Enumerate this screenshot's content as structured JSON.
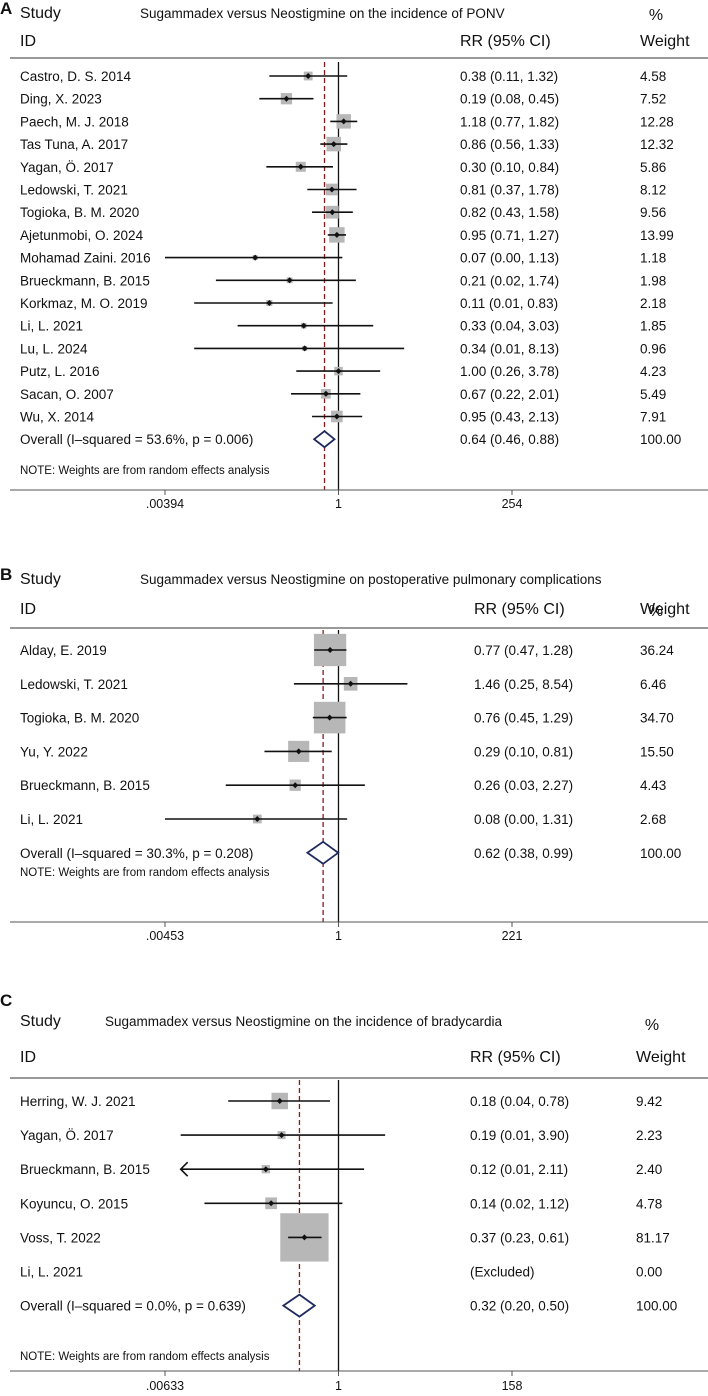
{
  "colors": {
    "box": "#b7b7b7",
    "line": "#111111",
    "diamond": "#1f2a5e",
    "dashed": "#8b1a1a"
  },
  "chart_data": [
    {
      "type": "forest",
      "panel": "A",
      "title": "Sugammadex versus Neostigmine on the incidence of PONV",
      "header": {
        "study": "Study",
        "id": "ID",
        "rr": "RR (95% CI)",
        "weight_top": "%",
        "weight": "Weight"
      },
      "xscale": "log",
      "xlim": [
        0.00394,
        254
      ],
      "xticks": [
        ".00394",
        "1",
        "254"
      ],
      "null_line": 1,
      "studies": [
        {
          "study": "Castro, D. S. 2014",
          "rr": 0.38,
          "lo": 0.11,
          "hi": 1.32,
          "ci": "0.38 (0.11, 1.32)",
          "weight": "4.58"
        },
        {
          "study": "Ding, X. 2023",
          "rr": 0.19,
          "lo": 0.08,
          "hi": 0.45,
          "ci": "0.19 (0.08, 0.45)",
          "weight": "7.52"
        },
        {
          "study": "Paech, M. J. 2018",
          "rr": 1.18,
          "lo": 0.77,
          "hi": 1.82,
          "ci": "1.18 (0.77, 1.82)",
          "weight": "12.28"
        },
        {
          "study": "Tas Tuna, A. 2017",
          "rr": 0.86,
          "lo": 0.56,
          "hi": 1.33,
          "ci": "0.86 (0.56, 1.33)",
          "weight": "12.32"
        },
        {
          "study": "Yagan, Ö. 2017",
          "rr": 0.3,
          "lo": 0.1,
          "hi": 0.84,
          "ci": "0.30 (0.10, 0.84)",
          "weight": "5.86"
        },
        {
          "study": "Ledowski, T. 2021",
          "rr": 0.81,
          "lo": 0.37,
          "hi": 1.78,
          "ci": "0.81 (0.37, 1.78)",
          "weight": "8.12"
        },
        {
          "study": "Togioka, B. M. 2020",
          "rr": 0.82,
          "lo": 0.43,
          "hi": 1.58,
          "ci": "0.82 (0.43, 1.58)",
          "weight": "9.56"
        },
        {
          "study": "Ajetunmobi, O. 2024",
          "rr": 0.95,
          "lo": 0.71,
          "hi": 1.27,
          "ci": "0.95 (0.71, 1.27)",
          "weight": "13.99"
        },
        {
          "study": "Mohamad Zaini. 2016",
          "rr": 0.07,
          "lo": 0.0,
          "hi": 1.13,
          "ci": "0.07 (0.00, 1.13)",
          "weight": "1.18"
        },
        {
          "study": "Brueckmann, B. 2015",
          "rr": 0.21,
          "lo": 0.02,
          "hi": 1.74,
          "ci": "0.21 (0.02, 1.74)",
          "weight": "1.98"
        },
        {
          "study": "Korkmaz, M. O. 2019",
          "rr": 0.11,
          "lo": 0.01,
          "hi": 0.83,
          "ci": "0.11 (0.01, 0.83)",
          "weight": "2.18"
        },
        {
          "study": "Li, L. 2021",
          "rr": 0.33,
          "lo": 0.04,
          "hi": 3.03,
          "ci": "0.33 (0.04, 3.03)",
          "weight": "1.85"
        },
        {
          "study": "Lu, L. 2024",
          "rr": 0.34,
          "lo": 0.01,
          "hi": 8.13,
          "ci": "0.34 (0.01, 8.13)",
          "weight": "0.96"
        },
        {
          "study": "Putz, L. 2016",
          "rr": 1.0,
          "lo": 0.26,
          "hi": 3.78,
          "ci": "1.00 (0.26, 3.78)",
          "weight": "4.23"
        },
        {
          "study": "Sacan, O. 2007",
          "rr": 0.67,
          "lo": 0.22,
          "hi": 2.01,
          "ci": "0.67 (0.22, 2.01)",
          "weight": "5.49"
        },
        {
          "study": "Wu, X. 2014",
          "rr": 0.95,
          "lo": 0.43,
          "hi": 2.13,
          "ci": "0.95 (0.43, 2.13)",
          "weight": "7.91"
        }
      ],
      "overall": {
        "label": "Overall  (I–squared = 53.6%, p = 0.006)",
        "rr": 0.64,
        "lo": 0.46,
        "hi": 0.88,
        "ci": "0.64 (0.46, 0.88)",
        "weight": "100.00"
      },
      "note": "NOTE: Weights are from random effects analysis"
    },
    {
      "type": "forest",
      "panel": "B",
      "title": "Sugammadex versus Neostigmine on postoperative pulmonary complications",
      "header": {
        "study": "Study",
        "id": "ID",
        "rr": "RR (95% CI)",
        "weight_top": "%",
        "weight": "Weight"
      },
      "xscale": "log",
      "xlim": [
        0.00453,
        221
      ],
      "xticks": [
        ".00453",
        "1",
        "221"
      ],
      "null_line": 1,
      "studies": [
        {
          "study": "Alday, E. 2019",
          "rr": 0.77,
          "lo": 0.47,
          "hi": 1.28,
          "ci": "0.77 (0.47, 1.28)",
          "weight": "36.24"
        },
        {
          "study": "Ledowski, T. 2021",
          "rr": 1.46,
          "lo": 0.25,
          "hi": 8.54,
          "ci": "1.46 (0.25, 8.54)",
          "weight": "6.46"
        },
        {
          "study": "Togioka, B. M. 2020",
          "rr": 0.76,
          "lo": 0.45,
          "hi": 1.29,
          "ci": "0.76 (0.45, 1.29)",
          "weight": "34.70"
        },
        {
          "study": "Yu, Y. 2022",
          "rr": 0.29,
          "lo": 0.1,
          "hi": 0.81,
          "ci": "0.29 (0.10, 0.81)",
          "weight": "15.50"
        },
        {
          "study": "Brueckmann, B. 2015",
          "rr": 0.26,
          "lo": 0.03,
          "hi": 2.27,
          "ci": "0.26 (0.03, 2.27)",
          "weight": "4.43"
        },
        {
          "study": "Li, L. 2021",
          "rr": 0.08,
          "lo": 0.0,
          "hi": 1.31,
          "ci": "0.08 (0.00, 1.31)",
          "weight": "2.68"
        }
      ],
      "overall": {
        "label": "Overall  (I–squared = 30.3%, p = 0.208)",
        "rr": 0.62,
        "lo": 0.38,
        "hi": 0.99,
        "ci": "0.62 (0.38, 0.99)",
        "weight": "100.00"
      },
      "note": "NOTE: Weights are from random effects analysis"
    },
    {
      "type": "forest",
      "panel": "C",
      "title": "Sugammadex versus Neostigmine on the incidence of bradycardia",
      "header": {
        "study": "Study",
        "id": "ID",
        "rr": "RR (95% CI)",
        "weight_top": "%",
        "weight": "Weight"
      },
      "xscale": "log",
      "xlim": [
        0.00633,
        158
      ],
      "xticks": [
        ".00633",
        "1",
        "158"
      ],
      "null_line": 1,
      "studies": [
        {
          "study": "Herring, W. J. 2021",
          "rr": 0.18,
          "lo": 0.04,
          "hi": 0.78,
          "ci": "0.18 (0.04, 0.78)",
          "weight": "9.42"
        },
        {
          "study": "Yagan, Ö. 2017",
          "rr": 0.19,
          "lo": 0.01,
          "hi": 3.9,
          "ci": "0.19 (0.01, 3.90)",
          "weight": "2.23"
        },
        {
          "study": "Brueckmann, B. 2015",
          "rr": 0.12,
          "lo": 0.01,
          "hi": 2.11,
          "ci": "0.12 (0.01, 2.11)",
          "weight": "2.40",
          "arrow_left": true
        },
        {
          "study": "Koyuncu, O. 2015",
          "rr": 0.14,
          "lo": 0.02,
          "hi": 1.12,
          "ci": "0.14 (0.02, 1.12)",
          "weight": "4.78"
        },
        {
          "study": "Voss, T. 2022",
          "rr": 0.37,
          "lo": 0.23,
          "hi": 0.61,
          "ci": "0.37 (0.23, 0.61)",
          "weight": "81.17"
        },
        {
          "study": "Li, L. 2021",
          "rr": null,
          "lo": null,
          "hi": null,
          "ci": "(Excluded)",
          "weight": "0.00"
        }
      ],
      "overall": {
        "label": "Overall  (I–squared = 0.0%, p = 0.639)",
        "rr": 0.32,
        "lo": 0.2,
        "hi": 0.5,
        "ci": "0.32 (0.20, 0.50)",
        "weight": "100.00"
      },
      "note": "NOTE: Weights are from random effects analysis"
    }
  ]
}
